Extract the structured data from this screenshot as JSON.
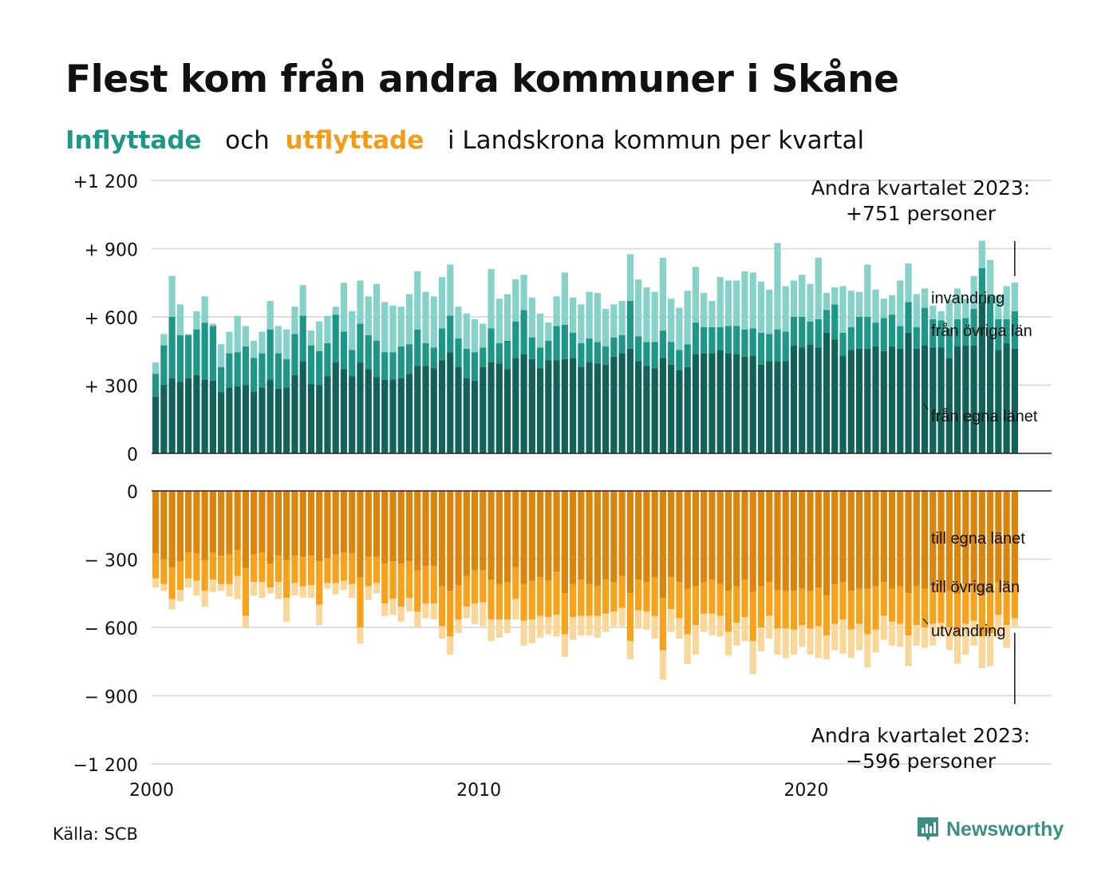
{
  "title": "Flest kom från andra kommuner i Skåne",
  "subtitle": {
    "in_word": "Inflyttade",
    "and_word": "och",
    "out_word": "utflyttade",
    "rest": "i Landskrona kommun per kvartal"
  },
  "source": "Källa: SCB",
  "brand": "Newsworthy",
  "colors": {
    "in_own": "#12625a",
    "in_other": "#1e9688",
    "in_immig": "#86d2c8",
    "out_own": "#d9850e",
    "out_other": "#f6a21c",
    "out_emig": "#f9d79a",
    "grid": "#dddddd",
    "axis": "#222222",
    "in_accent": "#1e9688",
    "out_accent": "#f29c18"
  },
  "chart_data": {
    "type": "bar",
    "stacked": true,
    "y_ticks_top": [
      {
        "value": 1200,
        "label": "+1 200"
      },
      {
        "value": 900,
        "label": "+  900"
      },
      {
        "value": 600,
        "label": "+  600"
      },
      {
        "value": 300,
        "label": "+  300"
      },
      {
        "value": 0,
        "label": "0"
      }
    ],
    "y_ticks_bottom": [
      {
        "value": 0,
        "label": "0"
      },
      {
        "value": -300,
        "label": "−  300"
      },
      {
        "value": -600,
        "label": "−  600"
      },
      {
        "value": -900,
        "label": "−  900"
      },
      {
        "value": -1200,
        "label": "−1 200"
      }
    ],
    "ylim_top": [
      0,
      1200
    ],
    "ylim_bottom": [
      -1200,
      0
    ],
    "x_ticks": [
      {
        "value": 2000,
        "label": "2000"
      },
      {
        "value": 2010,
        "label": "2010"
      },
      {
        "value": 2020,
        "label": "2020"
      }
    ],
    "xlim": [
      2000,
      2027.5
    ],
    "grid": true,
    "start_quarter": "2000 Q1",
    "end_quarter": "2023 Q2",
    "annotations": {
      "in_label_1": "Andra kvartalet 2023:",
      "in_label_2": "+751 personer",
      "out_label_1": "Andra kvartalet 2023:",
      "out_label_2": "−596 personer"
    },
    "inflow": {
      "series_names": [
        "från egna länet",
        "från övriga län",
        "invandring"
      ],
      "totals": [
        400,
        525,
        780,
        655,
        525,
        625,
        690,
        570,
        480,
        535,
        605,
        560,
        495,
        535,
        670,
        560,
        545,
        645,
        740,
        540,
        580,
        605,
        645,
        750,
        625,
        760,
        690,
        745,
        665,
        650,
        645,
        700,
        800,
        710,
        690,
        775,
        830,
        645,
        615,
        590,
        570,
        810,
        680,
        700,
        765,
        785,
        685,
        615,
        575,
        690,
        795,
        685,
        655,
        710,
        705,
        635,
        655,
        670,
        875,
        765,
        730,
        710,
        860,
        680,
        640,
        715,
        820,
        705,
        670,
        775,
        760,
        760,
        800,
        795,
        755,
        720,
        925,
        735,
        760,
        785,
        745,
        860,
        705,
        730,
        735,
        715,
        710,
        830,
        720,
        680,
        695,
        760,
        835,
        700,
        725,
        650,
        625,
        675,
        725,
        680,
        780,
        935,
        850,
        695,
        735,
        751
      ],
      "own": [
        250,
        300,
        330,
        315,
        330,
        345,
        325,
        320,
        270,
        290,
        295,
        300,
        270,
        290,
        325,
        285,
        290,
        345,
        405,
        305,
        300,
        340,
        400,
        370,
        340,
        400,
        370,
        335,
        325,
        325,
        330,
        350,
        385,
        385,
        375,
        410,
        445,
        380,
        330,
        320,
        380,
        400,
        395,
        370,
        420,
        435,
        415,
        375,
        410,
        410,
        415,
        420,
        380,
        400,
        395,
        390,
        425,
        440,
        460,
        405,
        385,
        375,
        420,
        390,
        365,
        380,
        435,
        440,
        440,
        455,
        440,
        435,
        425,
        430,
        390,
        405,
        405,
        405,
        475,
        465,
        480,
        465,
        530,
        500,
        430,
        455,
        460,
        460,
        470,
        450,
        470,
        460,
        530,
        460,
        475,
        465,
        465,
        420,
        470,
        475,
        475,
        665,
        520,
        455,
        485,
        460
      ],
      "other": [
        100,
        175,
        270,
        205,
        190,
        200,
        250,
        240,
        110,
        150,
        150,
        170,
        150,
        150,
        220,
        155,
        125,
        180,
        200,
        170,
        150,
        145,
        210,
        165,
        115,
        170,
        150,
        160,
        120,
        120,
        140,
        130,
        160,
        100,
        90,
        140,
        160,
        125,
        130,
        125,
        85,
        150,
        90,
        125,
        160,
        195,
        95,
        90,
        85,
        150,
        150,
        110,
        105,
        105,
        95,
        80,
        85,
        80,
        210,
        110,
        105,
        115,
        120,
        100,
        90,
        100,
        140,
        115,
        115,
        100,
        120,
        125,
        120,
        120,
        140,
        120,
        140,
        130,
        125,
        135,
        100,
        125,
        100,
        155,
        100,
        100,
        140,
        140,
        105,
        145,
        140,
        100,
        135,
        95,
        165,
        125,
        120,
        130,
        120,
        120,
        160,
        150,
        170,
        135,
        105,
        165
      ]
    },
    "outflow": {
      "series_names": [
        "till egna länet",
        "till övriga län",
        "utvandring"
      ],
      "totals": [
        425,
        440,
        520,
        485,
        425,
        460,
        510,
        445,
        440,
        465,
        475,
        600,
        460,
        470,
        450,
        475,
        575,
        460,
        470,
        470,
        590,
        430,
        455,
        435,
        470,
        670,
        480,
        450,
        550,
        545,
        575,
        530,
        600,
        560,
        565,
        650,
        720,
        625,
        560,
        585,
        595,
        660,
        645,
        625,
        565,
        680,
        670,
        645,
        630,
        640,
        730,
        655,
        635,
        635,
        645,
        620,
        595,
        595,
        740,
        605,
        610,
        650,
        830,
        620,
        650,
        760,
        720,
        620,
        635,
        640,
        725,
        680,
        660,
        805,
        705,
        650,
        720,
        735,
        720,
        685,
        720,
        735,
        740,
        700,
        715,
        735,
        700,
        775,
        710,
        655,
        680,
        685,
        770,
        680,
        690,
        680,
        640,
        700,
        760,
        720,
        680,
        780,
        770,
        645,
        690,
        596
      ],
      "own": [
        275,
        300,
        335,
        310,
        270,
        275,
        305,
        270,
        285,
        280,
        260,
        340,
        280,
        270,
        320,
        285,
        305,
        285,
        290,
        285,
        310,
        295,
        280,
        270,
        275,
        380,
        290,
        290,
        320,
        310,
        320,
        310,
        350,
        330,
        330,
        420,
        440,
        415,
        375,
        350,
        350,
        390,
        410,
        400,
        335,
        410,
        395,
        380,
        395,
        355,
        450,
        410,
        390,
        410,
        420,
        390,
        400,
        375,
        450,
        390,
        400,
        380,
        470,
        380,
        400,
        430,
        420,
        400,
        390,
        410,
        440,
        420,
        390,
        445,
        420,
        400,
        435,
        440,
        440,
        430,
        440,
        425,
        460,
        410,
        400,
        440,
        430,
        430,
        420,
        400,
        430,
        420,
        450,
        420,
        430,
        420,
        420,
        440,
        455,
        410,
        420,
        460,
        450,
        400,
        420,
        410
      ],
      "other": [
        110,
        110,
        140,
        125,
        115,
        120,
        135,
        120,
        125,
        130,
        115,
        210,
        120,
        130,
        105,
        115,
        165,
        120,
        130,
        130,
        190,
        110,
        125,
        125,
        135,
        220,
        130,
        115,
        175,
        165,
        190,
        160,
        180,
        165,
        165,
        175,
        200,
        150,
        135,
        145,
        140,
        175,
        155,
        165,
        140,
        160,
        170,
        170,
        160,
        190,
        180,
        145,
        160,
        140,
        130,
        150,
        130,
        140,
        210,
        135,
        130,
        170,
        230,
        140,
        160,
        200,
        170,
        140,
        150,
        140,
        180,
        160,
        165,
        215,
        180,
        150,
        170,
        165,
        170,
        160,
        165,
        170,
        175,
        175,
        165,
        170,
        155,
        200,
        190,
        150,
        145,
        165,
        185,
        170,
        170,
        165,
        160,
        160,
        175,
        175,
        150,
        180,
        175,
        145,
        170,
        150
      ]
    }
  }
}
